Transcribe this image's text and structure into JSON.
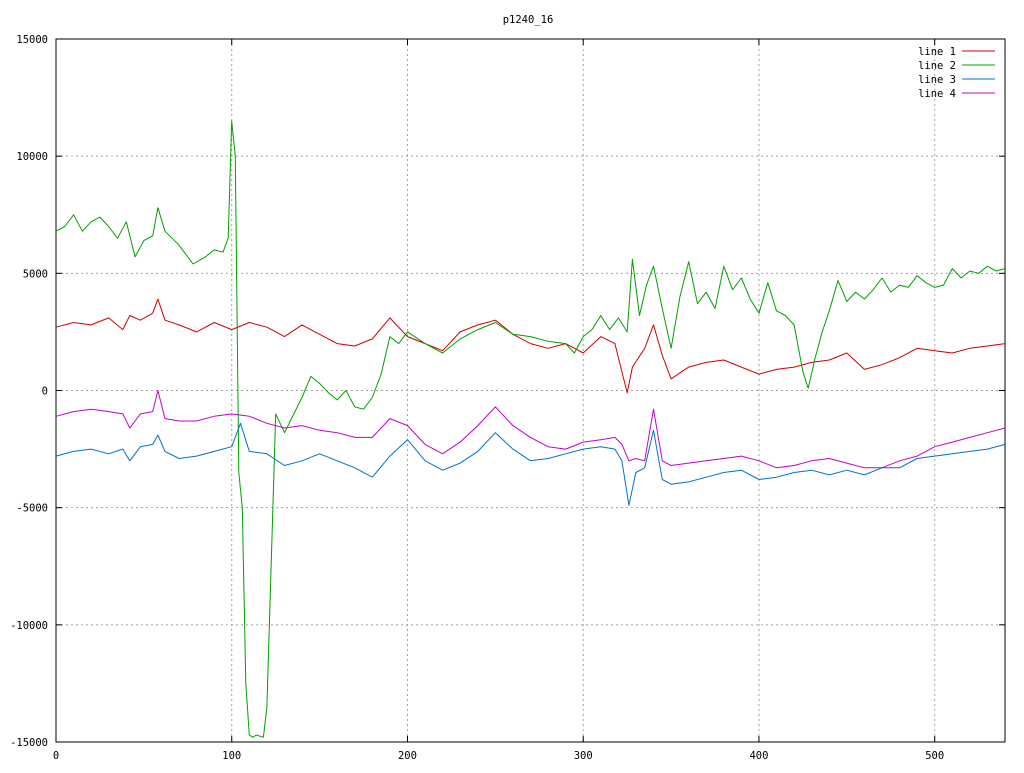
{
  "chart_data": {
    "type": "line",
    "title": "p1240_16",
    "xlabel": "",
    "ylabel": "",
    "xlim": [
      0,
      540
    ],
    "ylim": [
      -15000,
      15000
    ],
    "grid": true,
    "legend_position": "top-right",
    "x_ticks": [
      0,
      100,
      200,
      300,
      400,
      500
    ],
    "y_ticks": [
      -15000,
      -10000,
      -5000,
      0,
      5000,
      10000,
      15000
    ],
    "x_tick_labels": [
      "0",
      "100",
      "200",
      "300",
      "400",
      "500"
    ],
    "y_tick_labels": [
      "-15000",
      "-10000",
      "-5000",
      "0",
      "5000",
      "10000",
      "15000"
    ],
    "series": [
      {
        "name": "line 1",
        "color": "#d00000",
        "x": [
          0,
          10,
          20,
          30,
          38,
          42,
          48,
          55,
          58,
          62,
          70,
          80,
          90,
          100,
          110,
          120,
          130,
          140,
          150,
          160,
          170,
          180,
          190,
          200,
          210,
          220,
          230,
          240,
          250,
          260,
          270,
          280,
          290,
          300,
          310,
          318,
          322,
          325,
          328,
          335,
          340,
          345,
          350,
          360,
          370,
          380,
          390,
          400,
          410,
          420,
          430,
          440,
          450,
          460,
          470,
          480,
          490,
          500,
          510,
          520,
          530,
          540
        ],
        "y": [
          2700,
          2900,
          2800,
          3100,
          2600,
          3200,
          3000,
          3300,
          3900,
          3000,
          2800,
          2500,
          2900,
          2600,
          2900,
          2700,
          2300,
          2800,
          2400,
          2000,
          1900,
          2200,
          3100,
          2300,
          2000,
          1700,
          2500,
          2800,
          3000,
          2400,
          2000,
          1800,
          2000,
          1600,
          2300,
          2000,
          800,
          -100,
          1000,
          1800,
          2800,
          1500,
          500,
          1000,
          1200,
          1300,
          1000,
          700,
          900,
          1000,
          1200,
          1300,
          1600,
          900,
          1100,
          1400,
          1800,
          1700,
          1600,
          1800,
          1900,
          2000
        ]
      },
      {
        "name": "line 2",
        "color": "#00a000",
        "x": [
          0,
          5,
          10,
          15,
          20,
          25,
          30,
          35,
          40,
          45,
          50,
          55,
          58,
          62,
          70,
          78,
          85,
          90,
          95,
          98,
          100,
          102,
          104,
          106,
          108,
          110,
          112,
          114,
          118,
          120,
          125,
          130,
          140,
          145,
          150,
          155,
          160,
          165,
          170,
          175,
          180,
          185,
          190,
          195,
          200,
          210,
          220,
          230,
          240,
          250,
          260,
          270,
          280,
          290,
          295,
          300,
          305,
          310,
          315,
          320,
          325,
          328,
          332,
          336,
          340,
          345,
          350,
          355,
          360,
          365,
          370,
          375,
          380,
          385,
          390,
          395,
          400,
          405,
          410,
          415,
          420,
          425,
          428,
          432,
          436,
          440,
          445,
          450,
          455,
          460,
          465,
          470,
          475,
          480,
          485,
          490,
          495,
          500,
          505,
          510,
          515,
          520,
          525,
          530,
          535,
          540
        ],
        "y": [
          6800,
          7000,
          7500,
          6800,
          7200,
          7400,
          7000,
          6500,
          7200,
          5700,
          6400,
          6600,
          7800,
          6800,
          6200,
          5400,
          5700,
          6000,
          5900,
          6500,
          11500,
          10000,
          -3500,
          -5000,
          -12500,
          -14700,
          -14800,
          -14700,
          -14800,
          -13500,
          -1000,
          -1800,
          -300,
          600,
          300,
          -100,
          -400,
          0,
          -700,
          -800,
          -300,
          700,
          2300,
          2000,
          2500,
          2000,
          1600,
          2200,
          2600,
          2900,
          2400,
          2300,
          2100,
          2000,
          1600,
          2300,
          2600,
          3200,
          2600,
          3100,
          2500,
          5600,
          3200,
          4500,
          5300,
          3500,
          1800,
          4000,
          5500,
          3700,
          4200,
          3500,
          5300,
          4300,
          4800,
          3900,
          3300,
          4600,
          3400,
          3200,
          2800,
          800,
          100,
          1400,
          2500,
          3400,
          4700,
          3800,
          4200,
          3900,
          4300,
          4800,
          4200,
          4500,
          4400,
          4900,
          4600,
          4400,
          4500,
          5200,
          4800,
          5100,
          5000,
          5300,
          5100,
          5200
        ]
      },
      {
        "name": "line 3",
        "color": "#0070d0",
        "x": [
          0,
          10,
          20,
          30,
          38,
          42,
          48,
          55,
          58,
          62,
          70,
          80,
          90,
          100,
          105,
          110,
          120,
          130,
          140,
          150,
          160,
          170,
          180,
          190,
          200,
          210,
          220,
          230,
          240,
          250,
          260,
          270,
          280,
          290,
          300,
          310,
          318,
          322,
          326,
          330,
          335,
          340,
          345,
          350,
          360,
          370,
          380,
          390,
          400,
          410,
          420,
          430,
          440,
          450,
          460,
          470,
          480,
          490,
          500,
          510,
          520,
          530,
          540
        ],
        "y": [
          -2800,
          -2600,
          -2500,
          -2700,
          -2500,
          -3000,
          -2400,
          -2300,
          -1900,
          -2600,
          -2900,
          -2800,
          -2600,
          -2400,
          -1400,
          -2600,
          -2700,
          -3200,
          -3000,
          -2700,
          -3000,
          -3300,
          -3700,
          -2800,
          -2100,
          -3000,
          -3400,
          -3100,
          -2600,
          -1800,
          -2500,
          -3000,
          -2900,
          -2700,
          -2500,
          -2400,
          -2500,
          -3000,
          -4900,
          -3500,
          -3300,
          -1700,
          -3800,
          -4000,
          -3900,
          -3700,
          -3500,
          -3400,
          -3800,
          -3700,
          -3500,
          -3400,
          -3600,
          -3400,
          -3600,
          -3300,
          -3300,
          -2900,
          -2800,
          -2700,
          -2600,
          -2500,
          -2300
        ]
      },
      {
        "name": "line 4",
        "color": "#c000d0",
        "x": [
          0,
          10,
          20,
          30,
          38,
          42,
          48,
          55,
          58,
          62,
          70,
          80,
          90,
          100,
          110,
          120,
          130,
          140,
          150,
          160,
          170,
          180,
          190,
          200,
          210,
          220,
          230,
          240,
          250,
          260,
          270,
          280,
          290,
          300,
          310,
          318,
          322,
          326,
          330,
          335,
          340,
          345,
          350,
          360,
          370,
          380,
          390,
          400,
          410,
          420,
          430,
          440,
          450,
          460,
          470,
          480,
          490,
          500,
          510,
          520,
          530,
          540
        ],
        "y": [
          -1100,
          -900,
          -800,
          -900,
          -1000,
          -1600,
          -1000,
          -900,
          0,
          -1200,
          -1300,
          -1300,
          -1100,
          -1000,
          -1100,
          -1400,
          -1600,
          -1500,
          -1700,
          -1800,
          -2000,
          -2000,
          -1200,
          -1500,
          -2300,
          -2700,
          -2200,
          -1500,
          -700,
          -1500,
          -2000,
          -2400,
          -2500,
          -2200,
          -2100,
          -2000,
          -2300,
          -3000,
          -2900,
          -3000,
          -800,
          -3000,
          -3200,
          -3100,
          -3000,
          -2900,
          -2800,
          -3000,
          -3300,
          -3200,
          -3000,
          -2900,
          -3100,
          -3300,
          -3300,
          -3000,
          -2800,
          -2400,
          -2200,
          -2000,
          -1800,
          -1600
        ]
      }
    ]
  }
}
